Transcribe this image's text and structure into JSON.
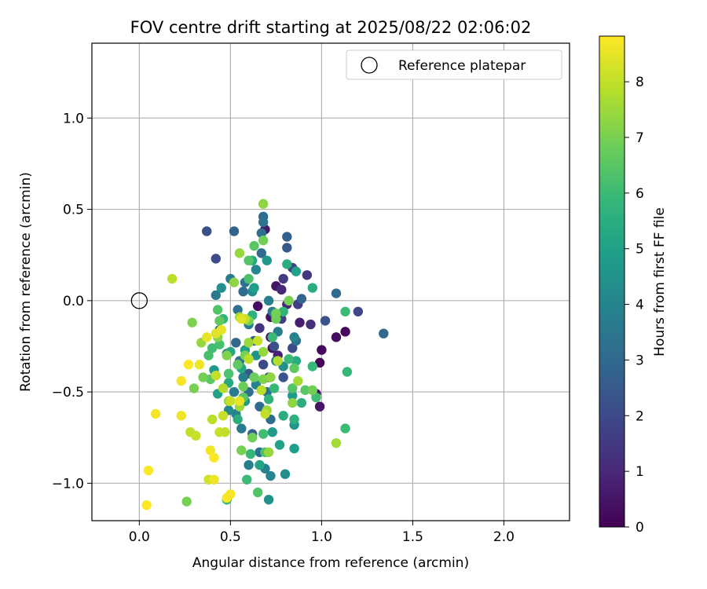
{
  "chart_data": {
    "type": "scatter",
    "title": "FOV centre drift starting at 2025/08/22 02:06:02",
    "xlabel": "Angular distance from reference (arcmin)",
    "ylabel": "Rotation from reference (arcmin)",
    "xlim": [
      -0.26,
      2.36
    ],
    "ylim": [
      -1.205,
      1.41
    ],
    "xticks": [
      0.0,
      0.5,
      1.0,
      1.5,
      2.0
    ],
    "xtick_labels": [
      "0.0",
      "0.5",
      "1.0",
      "1.5",
      "2.0"
    ],
    "yticks": [
      -1.0,
      -0.5,
      0.0,
      0.5,
      1.0
    ],
    "ytick_labels": [
      "−1.0",
      "−0.5",
      "0.0",
      "0.5",
      "1.0"
    ],
    "grid": true,
    "legend": {
      "placement": "top-right",
      "entries": [
        "Reference platepar"
      ]
    },
    "reference_point": {
      "x": 0.0,
      "y": 0.0,
      "label": "Reference platepar"
    },
    "colorbar": {
      "label": "Hours from first FF file",
      "min": 0,
      "max": 8.82,
      "ticks": [
        0,
        1,
        2,
        3,
        4,
        5,
        6,
        7,
        8
      ],
      "tick_labels": [
        "0",
        "1",
        "2",
        "3",
        "4",
        "5",
        "6",
        "7",
        "8"
      ],
      "colormap": "viridis",
      "colors": [
        "#440154",
        "#482878",
        "#3e4989",
        "#31688e",
        "#26828e",
        "#1f9e89",
        "#35b779",
        "#6ece58",
        "#b5de2b",
        "#fde725"
      ]
    },
    "series": [
      {
        "points": [
          [
            1.0,
            -0.27,
            0.2
          ],
          [
            0.99,
            -0.34,
            0.1
          ],
          [
            1.08,
            -0.2,
            0.3
          ],
          [
            1.13,
            -0.17,
            0.2
          ],
          [
            0.97,
            -0.51,
            0.4
          ],
          [
            0.99,
            -0.58,
            0.5
          ],
          [
            0.69,
            0.39,
            0.6
          ],
          [
            0.75,
            0.08,
            0.5
          ],
          [
            0.72,
            -0.09,
            0.4
          ],
          [
            0.65,
            -0.03,
            0.3
          ],
          [
            0.73,
            -0.26,
            0.4
          ],
          [
            0.88,
            -0.12,
            0.7
          ],
          [
            0.81,
            -0.02,
            0.9
          ],
          [
            0.78,
            0.06,
            1.0
          ],
          [
            0.72,
            -0.2,
            0.6
          ],
          [
            0.76,
            -0.3,
            0.8
          ],
          [
            0.94,
            -0.13,
            1.2
          ],
          [
            0.92,
            0.14,
            1.4
          ],
          [
            0.79,
            0.12,
            1.5
          ],
          [
            0.87,
            -0.02,
            1.6
          ],
          [
            0.84,
            0.18,
            1.8
          ],
          [
            0.66,
            -0.15,
            1.3
          ],
          [
            0.78,
            -0.1,
            1.7
          ],
          [
            1.2,
            -0.06,
            1.9
          ],
          [
            1.02,
            -0.11,
            2.3
          ],
          [
            0.37,
            0.38,
            2.2
          ],
          [
            0.42,
            0.23,
            2.1
          ],
          [
            0.81,
            0.29,
            2.4
          ],
          [
            0.68,
            -0.35,
            2.0
          ],
          [
            0.74,
            -0.25,
            2.2
          ],
          [
            0.71,
            -0.42,
            1.9
          ],
          [
            0.6,
            -0.4,
            2.4
          ],
          [
            0.63,
            -0.22,
            2.5
          ],
          [
            0.84,
            -0.26,
            2.0
          ],
          [
            0.79,
            -0.42,
            2.3
          ],
          [
            0.81,
            0.35,
            2.7
          ],
          [
            0.52,
            0.38,
            2.8
          ],
          [
            1.34,
            -0.18,
            2.9
          ],
          [
            1.08,
            0.04,
            3.0
          ],
          [
            0.89,
            0.01,
            2.8
          ],
          [
            0.86,
            -0.22,
            3.2
          ],
          [
            0.68,
            0.46,
            3.1
          ],
          [
            0.68,
            0.43,
            3.3
          ],
          [
            0.67,
            0.37,
            3.2
          ],
          [
            0.67,
            0.26,
            3.0
          ],
          [
            0.58,
            0.1,
            3.4
          ],
          [
            0.57,
            0.05,
            3.1
          ],
          [
            0.54,
            -0.05,
            3.3
          ],
          [
            0.53,
            -0.23,
            2.9
          ],
          [
            0.55,
            -0.33,
            3.4
          ],
          [
            0.6,
            -0.5,
            3.2
          ],
          [
            0.66,
            -0.58,
            3.0
          ],
          [
            0.7,
            -0.5,
            3.3
          ],
          [
            0.72,
            -0.65,
            3.1
          ],
          [
            0.62,
            -0.73,
            2.7
          ],
          [
            0.66,
            -0.83,
            3.4
          ],
          [
            0.73,
            -0.06,
            3.5
          ],
          [
            0.42,
            0.03,
            3.6
          ],
          [
            0.44,
            -0.16,
            3.7
          ],
          [
            0.5,
            0.12,
            3.6
          ],
          [
            0.48,
            -0.29,
            3.8
          ],
          [
            0.52,
            -0.5,
            3.7
          ],
          [
            0.56,
            -0.7,
            3.6
          ],
          [
            0.6,
            -0.9,
            3.8
          ],
          [
            0.69,
            -0.92,
            3.9
          ],
          [
            0.64,
            -0.46,
            3.9
          ],
          [
            0.71,
            0.0,
            3.8
          ],
          [
            0.76,
            -0.17,
            3.7
          ],
          [
            0.75,
            -0.33,
            3.9
          ],
          [
            0.6,
            -0.13,
            3.6
          ],
          [
            0.57,
            -0.42,
            3.8
          ],
          [
            0.72,
            -0.96,
            4.0
          ],
          [
            0.8,
            -0.95,
            4.3
          ],
          [
            0.71,
            -1.09,
            4.5
          ],
          [
            0.64,
            0.17,
            4.1
          ],
          [
            0.62,
            0.05,
            4.2
          ],
          [
            0.45,
            0.07,
            4.4
          ],
          [
            0.49,
            -0.6,
            4.2
          ],
          [
            0.53,
            -0.62,
            4.0
          ],
          [
            0.58,
            -0.55,
            4.3
          ],
          [
            0.74,
            -0.07,
            4.1
          ],
          [
            0.79,
            -0.36,
            4.4
          ],
          [
            0.64,
            -0.3,
            4.5
          ],
          [
            0.85,
            -0.2,
            4.0
          ],
          [
            0.7,
            0.22,
            4.7
          ],
          [
            0.73,
            -0.72,
            4.8
          ],
          [
            0.77,
            -0.79,
            5.0
          ],
          [
            0.85,
            -0.68,
            4.6
          ],
          [
            0.85,
            -0.81,
            4.9
          ],
          [
            0.84,
            -0.52,
            4.8
          ],
          [
            0.86,
            0.16,
            5.0
          ],
          [
            0.63,
            0.07,
            4.9
          ],
          [
            0.41,
            -0.38,
            4.7
          ],
          [
            0.43,
            -0.51,
            5.0
          ],
          [
            0.58,
            -0.55,
            4.8
          ],
          [
            0.66,
            -0.9,
            5.1
          ],
          [
            0.58,
            -0.27,
            4.9
          ],
          [
            0.95,
            0.07,
            5.4
          ],
          [
            0.81,
            0.2,
            5.5
          ],
          [
            0.62,
            0.22,
            5.3
          ],
          [
            0.85,
            -0.65,
            5.6
          ],
          [
            0.89,
            -0.56,
            5.5
          ],
          [
            0.79,
            -0.63,
            5.4
          ],
          [
            0.71,
            -0.54,
            5.7
          ],
          [
            0.5,
            -0.28,
            5.3
          ],
          [
            0.62,
            -0.08,
            5.6
          ],
          [
            0.56,
            -0.37,
            5.2
          ],
          [
            0.86,
            -0.33,
            5.4
          ],
          [
            0.54,
            -0.65,
            5.5
          ],
          [
            0.49,
            -0.45,
            5.3
          ],
          [
            1.14,
            -0.39,
            5.9
          ],
          [
            1.13,
            -0.06,
            6.0
          ],
          [
            1.13,
            -0.7,
            6.0
          ],
          [
            0.95,
            -0.36,
            5.9
          ],
          [
            0.97,
            -0.53,
            6.1
          ],
          [
            0.79,
            -0.06,
            5.8
          ],
          [
            0.73,
            -0.2,
            6.0
          ],
          [
            0.68,
            -0.73,
            6.1
          ],
          [
            0.59,
            -0.98,
            6.0
          ],
          [
            0.61,
            -0.84,
            5.9
          ],
          [
            0.46,
            -0.1,
            5.8
          ],
          [
            0.44,
            -0.24,
            6.2
          ],
          [
            0.4,
            -0.26,
            6.1
          ],
          [
            0.48,
            -1.09,
            5.8
          ],
          [
            0.74,
            -0.48,
            5.9
          ],
          [
            0.82,
            -0.32,
            6.0
          ],
          [
            0.38,
            -0.3,
            6.2
          ],
          [
            0.6,
            0.22,
            6.4
          ],
          [
            0.63,
            0.3,
            6.5
          ],
          [
            0.6,
            0.12,
            6.3
          ],
          [
            0.43,
            -0.05,
            6.4
          ],
          [
            0.44,
            -0.11,
            6.6
          ],
          [
            0.39,
            -0.43,
            6.5
          ],
          [
            0.49,
            -0.4,
            6.3
          ],
          [
            0.54,
            -0.35,
            6.6
          ],
          [
            0.65,
            -1.05,
            6.4
          ],
          [
            0.57,
            -0.53,
            6.5
          ],
          [
            0.69,
            -0.83,
            6.3
          ],
          [
            0.85,
            -0.37,
            6.6
          ],
          [
            0.84,
            -0.48,
            6.4
          ],
          [
            0.91,
            -0.49,
            6.5
          ],
          [
            0.95,
            -0.49,
            6.9
          ],
          [
            0.68,
            0.33,
            6.9
          ],
          [
            0.6,
            -0.11,
            7.0
          ],
          [
            0.63,
            -0.42,
            6.8
          ],
          [
            0.58,
            -0.3,
            7.0
          ],
          [
            0.48,
            -0.3,
            7.1
          ],
          [
            0.35,
            -0.42,
            6.9
          ],
          [
            0.3,
            -0.48,
            7.0
          ],
          [
            0.29,
            -0.12,
            7.1
          ],
          [
            0.26,
            -1.1,
            7.0
          ],
          [
            0.75,
            -0.1,
            6.8
          ],
          [
            0.75,
            -0.07,
            6.9
          ],
          [
            0.82,
            0.0,
            7.0
          ],
          [
            0.57,
            -0.47,
            6.8
          ],
          [
            0.56,
            -0.82,
            7.0
          ],
          [
            0.62,
            -0.75,
            6.9
          ],
          [
            0.68,
            -0.43,
            7.1
          ],
          [
            0.68,
            0.53,
            7.3
          ],
          [
            0.55,
            0.26,
            7.4
          ],
          [
            0.52,
            0.1,
            7.3
          ],
          [
            0.6,
            -0.23,
            7.5
          ],
          [
            0.68,
            -0.28,
            7.4
          ],
          [
            0.72,
            -0.42,
            7.3
          ],
          [
            0.7,
            -0.6,
            7.5
          ],
          [
            0.71,
            -0.83,
            7.4
          ],
          [
            0.84,
            -0.56,
            7.3
          ],
          [
            0.87,
            -0.44,
            7.6
          ],
          [
            1.08,
            -0.78,
            7.6
          ],
          [
            0.55,
            -0.58,
            7.5
          ],
          [
            0.49,
            -0.55,
            7.4
          ],
          [
            0.43,
            -0.2,
            7.2
          ],
          [
            0.34,
            -0.23,
            7.4
          ],
          [
            0.55,
            -0.09,
            7.6
          ],
          [
            0.18,
            0.12,
            7.9
          ],
          [
            0.28,
            -0.72,
            8.0
          ],
          [
            0.4,
            -0.65,
            7.9
          ],
          [
            0.42,
            -0.41,
            8.0
          ],
          [
            0.46,
            -0.48,
            7.8
          ],
          [
            0.6,
            -0.32,
            7.9
          ],
          [
            0.58,
            -0.1,
            8.0
          ],
          [
            0.65,
            -0.22,
            8.1
          ],
          [
            0.76,
            -0.33,
            7.8
          ],
          [
            0.69,
            -0.62,
            8.0
          ],
          [
            0.67,
            -0.49,
            7.9
          ],
          [
            0.44,
            -0.72,
            8.1
          ],
          [
            0.46,
            -0.63,
            8.1
          ],
          [
            0.47,
            -0.72,
            8.0
          ],
          [
            0.5,
            -0.55,
            8.1
          ],
          [
            0.38,
            -0.98,
            8.2
          ],
          [
            0.31,
            -0.74,
            8.1
          ],
          [
            0.04,
            -1.12,
            8.8
          ],
          [
            0.05,
            -0.93,
            8.8
          ],
          [
            0.09,
            -0.62,
            8.7
          ],
          [
            0.23,
            -0.63,
            8.6
          ],
          [
            0.23,
            -0.44,
            8.7
          ],
          [
            0.27,
            -0.35,
            8.8
          ],
          [
            0.33,
            -0.35,
            8.6
          ],
          [
            0.37,
            -0.2,
            8.5
          ],
          [
            0.39,
            -0.82,
            8.7
          ],
          [
            0.41,
            -0.86,
            8.8
          ],
          [
            0.41,
            -0.98,
            8.6
          ],
          [
            0.48,
            -1.08,
            8.8
          ],
          [
            0.5,
            -1.06,
            8.7
          ],
          [
            0.42,
            -0.18,
            8.4
          ],
          [
            0.45,
            -0.16,
            8.5
          ],
          [
            0.56,
            -0.1,
            8.4
          ],
          [
            0.55,
            -0.55,
            8.5
          ]
        ]
      }
    ]
  }
}
